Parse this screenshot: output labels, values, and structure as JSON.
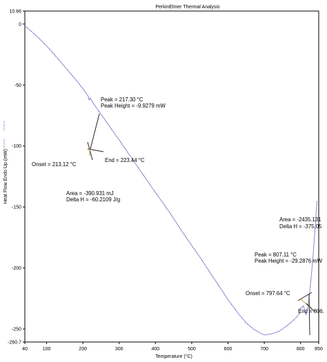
{
  "chart_data": {
    "type": "line",
    "title": "PerkinElmer Thermal Analysis",
    "xlabel": "Temperature (°C)",
    "ylabel": "Heat Flow Endo Up (mW)",
    "xlim": [
      40,
      850
    ],
    "ylim": [
      -260.7,
      10.66
    ],
    "x_ticks": [
      "40",
      "100",
      "200",
      "300",
      "400",
      "500",
      "600",
      "700",
      "800",
      "850"
    ],
    "x_tick_values": [
      40,
      100,
      200,
      300,
      400,
      500,
      600,
      700,
      800,
      850
    ],
    "y_ticks": [
      "10.66",
      "0",
      "-50",
      "-100",
      "-150",
      "-200",
      "-250",
      "-260.7"
    ],
    "y_tick_values": [
      10.66,
      0,
      -50,
      -100,
      -150,
      -200,
      -250,
      -260.7
    ],
    "grid": false,
    "series": [
      {
        "color": "#3b3bb5",
        "x": [
          40,
          60,
          80,
          100,
          120,
          140,
          160,
          180,
          200,
          210,
          215,
          217.3,
          220,
          223.4,
          230,
          250,
          270,
          300,
          330,
          360,
          400,
          440,
          480,
          520,
          560,
          600,
          630,
          650,
          670,
          690,
          700,
          720,
          740,
          760,
          780,
          790,
          797.6,
          800,
          805,
          807.1,
          810,
          812,
          815,
          820,
          825,
          830,
          835,
          840,
          845
        ],
        "y": [
          -1.5,
          -6.5,
          -12,
          -18,
          -24.5,
          -31.5,
          -38.5,
          -45.5,
          -53,
          -57,
          -59.5,
          -62.5,
          -60.5,
          -62.5,
          -65.5,
          -74,
          -82.5,
          -95,
          -108,
          -121,
          -138,
          -155,
          -173,
          -190,
          -208,
          -226,
          -238,
          -245,
          -250,
          -253.5,
          -255,
          -254,
          -252,
          -248,
          -243,
          -240,
          -237,
          -233,
          -232,
          -231,
          -233,
          -235,
          -238,
          -233,
          -220,
          -205,
          -188,
          -168,
          -145
        ]
      }
    ],
    "annotations": [
      {
        "label": "Peak = 217.30 °C"
      },
      {
        "label": "Peak Height = -9.9279 mW"
      },
      {
        "label": "Onset = 213.12 °C"
      },
      {
        "label": "End = 223.44 °C"
      },
      {
        "label": "Area = -390.931 mJ"
      },
      {
        "label": "Delta H = -60.2109 J/g"
      },
      {
        "label": "Area = -2435.131"
      },
      {
        "label": "Delta H = -375.05"
      },
      {
        "label": "Peak = 807.11 °C"
      },
      {
        "label": "Peak Height = -29.2876 mW"
      },
      {
        "label": "Onset = 797.64 °C"
      },
      {
        "label": "End = 806."
      }
    ]
  }
}
